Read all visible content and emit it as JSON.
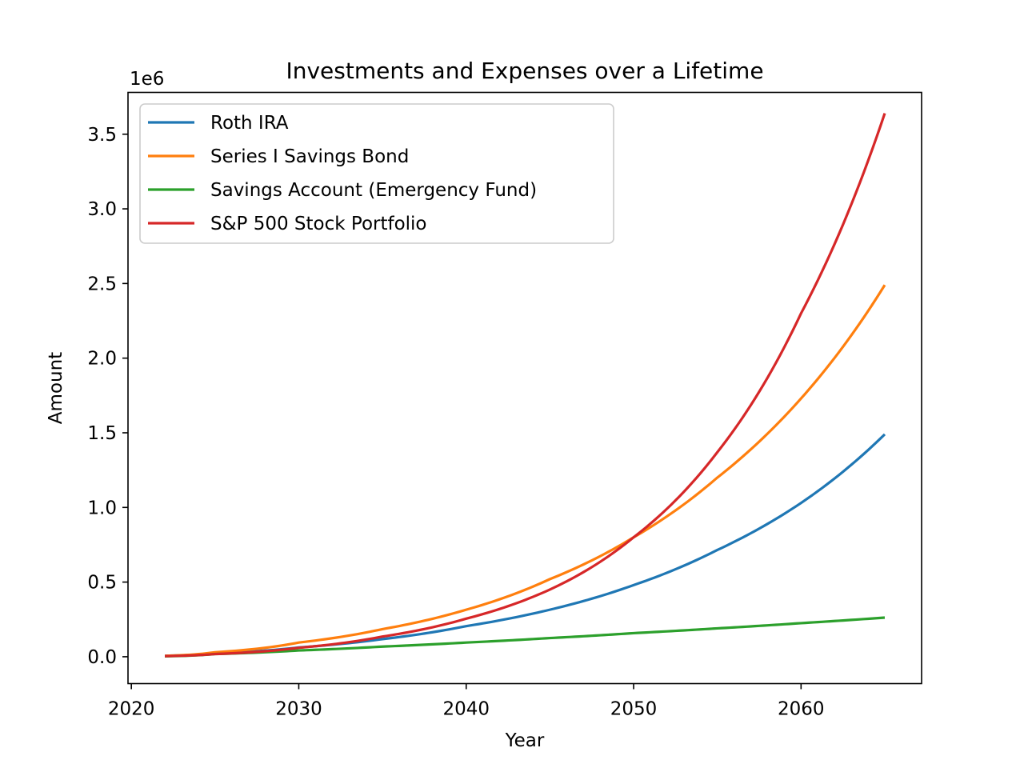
{
  "chart_data": {
    "type": "line",
    "title": "Investments and Expenses over a Lifetime",
    "xlabel": "Year",
    "ylabel": "Amount",
    "y_offset_label": "1e6",
    "xlim": [
      2019.8,
      2067.2
    ],
    "ylim": [
      -0.18,
      3.78
    ],
    "x_ticks": [
      2020,
      2030,
      2040,
      2050,
      2060
    ],
    "x_tick_labels": [
      "2020",
      "2030",
      "2040",
      "2050",
      "2060"
    ],
    "y_ticks": [
      0.0,
      0.5,
      1.0,
      1.5,
      2.0,
      2.5,
      3.0,
      3.5
    ],
    "y_tick_labels": [
      "0.0",
      "0.5",
      "1.0",
      "1.5",
      "2.0",
      "2.5",
      "3.0",
      "3.5"
    ],
    "y_unit_multiplier": 1000000,
    "grid": false,
    "legend_position": "upper-left",
    "series": [
      {
        "name": "Roth IRA",
        "color": "#1f77b4",
        "x": [
          2022,
          2025,
          2030,
          2035,
          2040,
          2045,
          2050,
          2055,
          2060,
          2065
        ],
        "values": [
          0.006,
          0.022,
          0.062,
          0.118,
          0.205,
          0.315,
          0.48,
          0.715,
          1.03,
          1.49
        ]
      },
      {
        "name": "Series I Savings Bond",
        "color": "#ff7f0e",
        "x": [
          2022,
          2025,
          2030,
          2035,
          2040,
          2045,
          2050,
          2055,
          2060,
          2065
        ],
        "values": [
          0.006,
          0.03,
          0.095,
          0.185,
          0.315,
          0.52,
          0.8,
          1.2,
          1.73,
          2.49
        ]
      },
      {
        "name": "Savings Account (Emergency Fund)",
        "color": "#2ca02c",
        "x": [
          2022,
          2025,
          2030,
          2035,
          2040,
          2045,
          2050,
          2055,
          2060,
          2065
        ],
        "values": [
          0.003,
          0.018,
          0.042,
          0.068,
          0.095,
          0.125,
          0.158,
          0.19,
          0.225,
          0.262
        ]
      },
      {
        "name": "S&P 500 Stock Portfolio",
        "color": "#d62728",
        "x": [
          2022,
          2025,
          2030,
          2035,
          2040,
          2045,
          2050,
          2055,
          2060,
          2065
        ],
        "values": [
          0.004,
          0.018,
          0.06,
          0.135,
          0.255,
          0.45,
          0.8,
          1.37,
          2.3,
          3.64
        ]
      }
    ]
  }
}
